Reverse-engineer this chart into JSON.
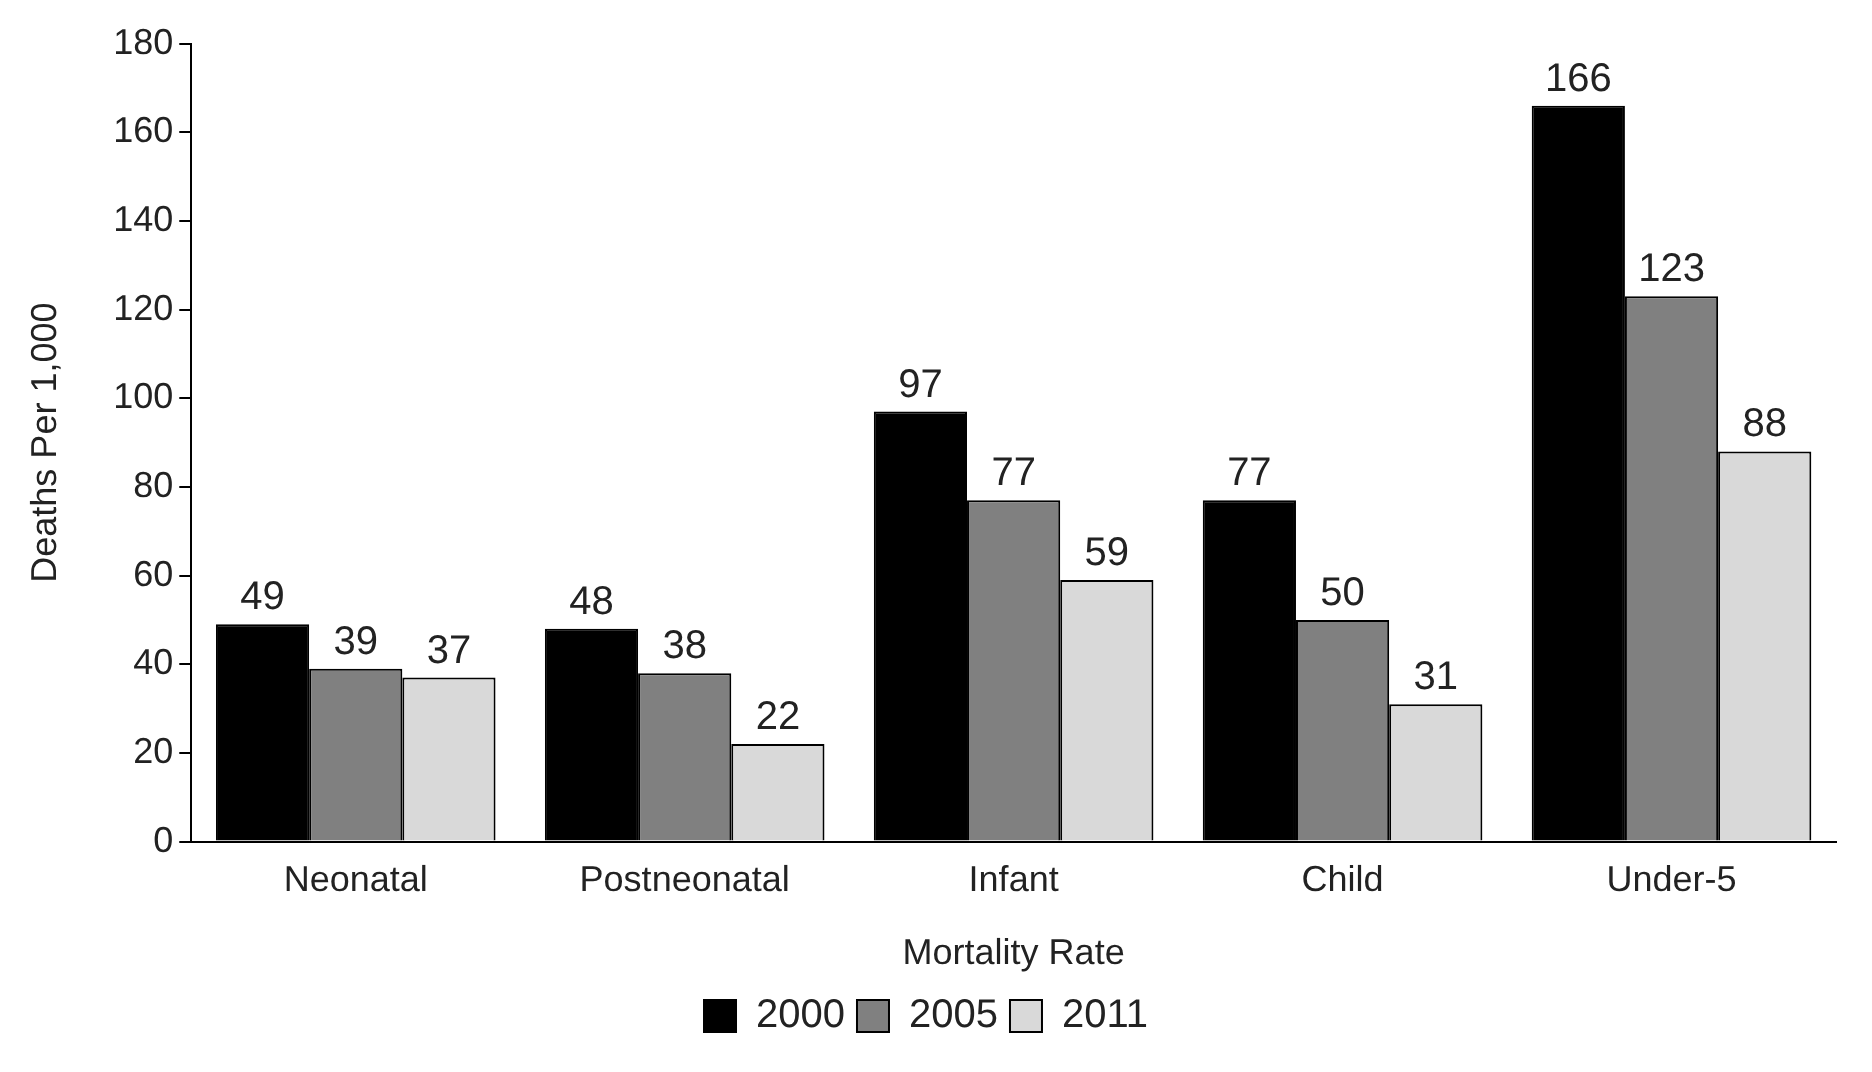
{
  "chart_data": {
    "type": "bar",
    "xlabel": "Mortality Rate",
    "ylabel": "Deaths Per 1,000",
    "categories": [
      "Neonatal",
      "Postneonatal",
      "Infant",
      "Child",
      "Under-5"
    ],
    "series": [
      {
        "name": "2000",
        "color": "#000000",
        "values": [
          49,
          48,
          97,
          77,
          166
        ]
      },
      {
        "name": "2005",
        "color": "#808080",
        "values": [
          39,
          38,
          77,
          50,
          123
        ]
      },
      {
        "name": "2011",
        "color": "#d9d9d9",
        "values": [
          37,
          22,
          59,
          31,
          88
        ]
      }
    ],
    "ylim": [
      0,
      180
    ],
    "yticks": [
      0,
      20,
      40,
      60,
      80,
      100,
      120,
      140,
      160,
      180
    ],
    "grid": false,
    "legend": "bottom",
    "data_labels": true
  }
}
